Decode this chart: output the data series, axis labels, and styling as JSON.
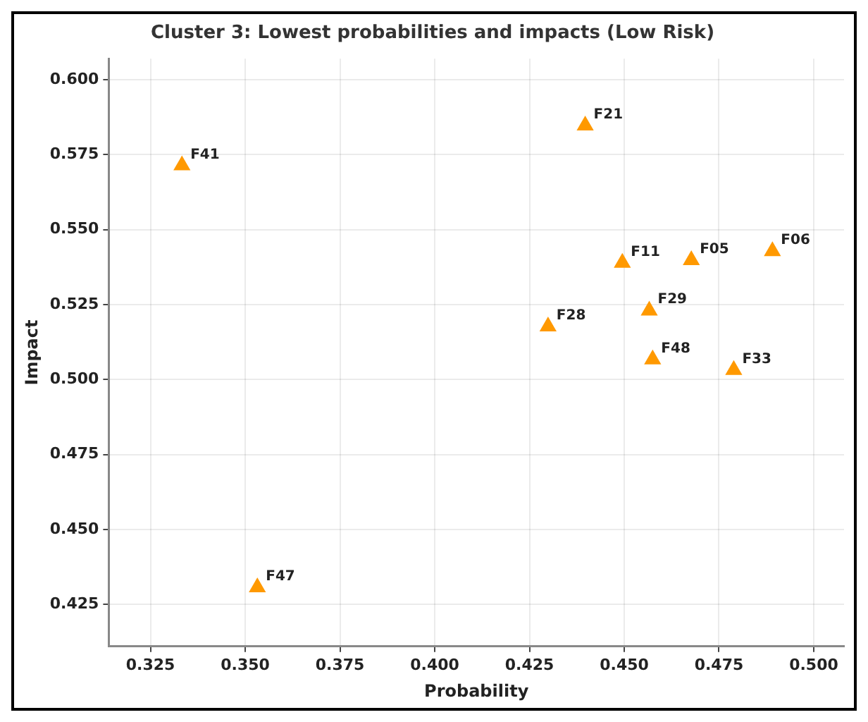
{
  "chart_data": {
    "type": "scatter",
    "title": "Cluster 3: Lowest probabilities and impacts (Low Risk)",
    "xlabel": "Probability",
    "ylabel": "Impact",
    "series": [
      {
        "color": "#ff9900",
        "x": [
          0.3333,
          0.4397,
          0.4495,
          0.4677,
          0.4891,
          0.4566,
          0.4299,
          0.4575,
          0.4789,
          0.3532
        ],
        "values": [
          0.5714,
          0.5847,
          0.5389,
          0.5398,
          0.5428,
          0.523,
          0.5177,
          0.5067,
          0.5032,
          0.4307
        ]
      }
    ],
    "annotations": [
      {
        "text": "F41",
        "x": 0.3333,
        "y": 0.5714
      },
      {
        "text": "F21",
        "x": 0.4397,
        "y": 0.5847
      },
      {
        "text": "F11",
        "x": 0.4495,
        "y": 0.5389
      },
      {
        "text": "F05",
        "x": 0.4677,
        "y": 0.5398
      },
      {
        "text": "F06",
        "x": 0.4891,
        "y": 0.5428
      },
      {
        "text": "F29",
        "x": 0.4566,
        "y": 0.523
      },
      {
        "text": "F28",
        "x": 0.4299,
        "y": 0.5177
      },
      {
        "text": "F48",
        "x": 0.4575,
        "y": 0.5067
      },
      {
        "text": "F33",
        "x": 0.4789,
        "y": 0.5032
      },
      {
        "text": "F47",
        "x": 0.3532,
        "y": 0.4307
      }
    ],
    "xlim": [
      0.314,
      0.508
    ],
    "xticks": [
      {
        "value": 0.325,
        "label": "0.325"
      },
      {
        "value": 0.35,
        "label": "0.350"
      },
      {
        "value": 0.375,
        "label": "0.375"
      },
      {
        "value": 0.4,
        "label": "0.400"
      },
      {
        "value": 0.425,
        "label": "0.425"
      },
      {
        "value": 0.45,
        "label": "0.450"
      },
      {
        "value": 0.475,
        "label": "0.475"
      },
      {
        "value": 0.5,
        "label": "0.500"
      }
    ],
    "ylim": [
      0.411,
      0.607
    ],
    "yticks": [
      {
        "value": 0.425,
        "label": "0.425"
      },
      {
        "value": 0.45,
        "label": "0.450"
      },
      {
        "value": 0.475,
        "label": "0.475"
      },
      {
        "value": 0.5,
        "label": "0.500"
      },
      {
        "value": 0.525,
        "label": "0.525"
      },
      {
        "value": 0.55,
        "label": "0.550"
      },
      {
        "value": 0.575,
        "label": "0.575"
      },
      {
        "value": 0.6,
        "label": "0.600"
      }
    ],
    "grid": true,
    "legend": false,
    "marker": "triangle"
  }
}
